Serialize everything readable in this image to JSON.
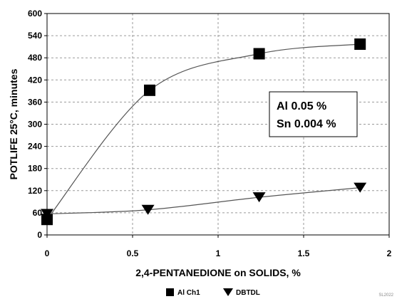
{
  "chart_data": {
    "type": "line",
    "xlabel": "2,4-PENTANEDIONE on SOLIDS, %",
    "ylabel": "POTLIFE 25°C, minutes",
    "xlim": [
      0,
      2
    ],
    "ylim": [
      0,
      600
    ],
    "x_ticks": [
      "0",
      "0.5",
      "1",
      "1.5",
      "2"
    ],
    "y_ticks": [
      "0",
      "60",
      "120",
      "180",
      "240",
      "300",
      "360",
      "420",
      "480",
      "540",
      "600"
    ],
    "grid": true,
    "legend_position": "bottom-center",
    "annotation": [
      "Al  0.05 %",
      "Sn 0.004 %"
    ],
    "corner_note": "SL2022",
    "series": [
      {
        "name": "Al Ch1",
        "marker": "square",
        "color": "#000000",
        "x": [
          0,
          0.6,
          1.24,
          1.83
        ],
        "y": [
          42,
          392,
          491,
          517
        ]
      },
      {
        "name": "DBTDL",
        "marker": "triangle-down",
        "color": "#000000",
        "x": [
          0,
          0.59,
          1.24,
          1.83
        ],
        "y": [
          57,
          68,
          102,
          128
        ]
      }
    ]
  }
}
